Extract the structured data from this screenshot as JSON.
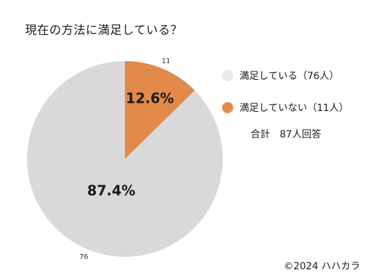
{
  "chart_data": {
    "type": "pie",
    "title": "現在の方法に満足している？",
    "slices": [
      {
        "label": "満足している（76人）",
        "value": 76,
        "value_label": "76",
        "percent_label": "87.4%",
        "color": "#d9d9d9"
      },
      {
        "label": "満足していない（11人）",
        "value": 11,
        "value_label": "11",
        "percent_label": "12.6%",
        "color": "#e38a4a"
      }
    ],
    "start_angle_deg": 0,
    "direction": "counterclockwise",
    "legend_position": "right",
    "total_label": "合計　87人回答"
  },
  "legend_colors": [
    "#ebe6ed",
    "#e38a4a"
  ],
  "copyright": "©2024 ハハカラ"
}
